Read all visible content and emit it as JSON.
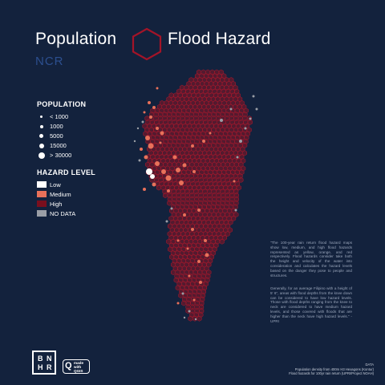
{
  "title": {
    "left": "Population",
    "right": "Flood Hazard",
    "subtitle": "NCR"
  },
  "population_legend": {
    "title": "POPULATION",
    "items": [
      {
        "label": "< 1000",
        "size_rank": 1
      },
      {
        "label": "1000",
        "size_rank": 2
      },
      {
        "label": "5000",
        "size_rank": 3
      },
      {
        "label": "15000",
        "size_rank": 4
      },
      {
        "label": "> 30000",
        "size_rank": 5
      }
    ]
  },
  "hazard_legend": {
    "title": "HAZARD LEVEL",
    "items": [
      {
        "label": "Low",
        "color": "#ffffff"
      },
      {
        "label": "Medium",
        "color": "#e8715a"
      },
      {
        "label": "High",
        "color": "#7a0f1e"
      },
      {
        "label": "NO DATA",
        "color": "#9a9ea6"
      }
    ]
  },
  "colors": {
    "background": "#13223d",
    "hex_grid": "#8a1424",
    "hex_outline": "#b0182c",
    "subtitle": "#2c4f8f"
  },
  "notes": [
    "\"The 100-year rain return flood hazard maps show low, medium, and high flood hazards represented as yellow, orange, and red respectively. Flood hazards consider take both the height and velocity of the water into consideration and calculates the hazard levels based on the danger they pose to people and structures.",
    "Generally, for an average Filipino with a height of 5' 6\", areas with flood depths from the knee down can be considered to have low hazard levels. Those with flood depths ranging from the knee to neck are considered to have medium hazard levels, and those covered with floods that are higher than the neck have high hazard levels.\" - UPRI"
  ],
  "logos": {
    "bnhr": [
      "B",
      "N",
      "H",
      "R"
    ],
    "qgis": {
      "q": "Q",
      "made": "made",
      "with": "with",
      "name": "QGIS"
    }
  },
  "data_credit": {
    "heading": "DATA",
    "line1": "Population density from 400m H3 Hexagons (Kontur)",
    "line2": "Flood hazards for 100yr rain return (UPRI/Project NOAH)"
  }
}
